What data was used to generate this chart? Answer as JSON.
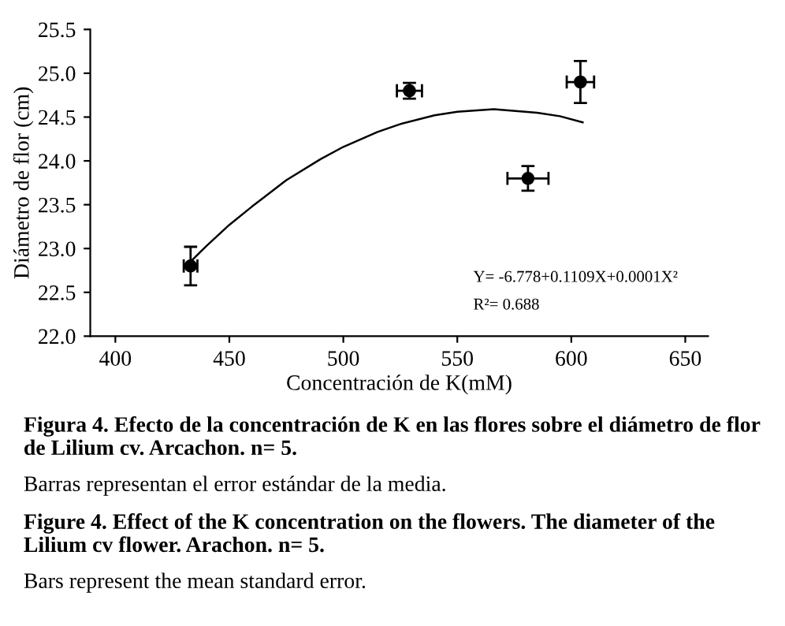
{
  "chart_data": {
    "type": "scatter",
    "xlabel": "Concentración de K(mM)",
    "ylabel": "Diámetro de flor (cm)",
    "xlim": [
      389,
      660
    ],
    "xticks": [
      400,
      450,
      500,
      550,
      600,
      650
    ],
    "ylim": [
      22.0,
      25.5
    ],
    "yticks": [
      {
        "value": 22.0,
        "label": "22.0"
      },
      {
        "value": 22.5,
        "label": "22.5"
      },
      {
        "value": 23.0,
        "label": "23.0"
      },
      {
        "value": 23.5,
        "label": "23.5"
      },
      {
        "value": 24.0,
        "label": "24.0"
      },
      {
        "value": 24.5,
        "label": "24.5"
      },
      {
        "value": 25.0,
        "label": "25.0"
      },
      {
        "value": 25.5,
        "label": "25.5"
      }
    ],
    "grid": false,
    "legend": false,
    "series": [
      {
        "marker": "circle",
        "color": "#000000",
        "x": [
          433,
          529,
          581,
          604
        ],
        "values": [
          22.8,
          24.8,
          23.8,
          24.9
        ],
        "errors": [
          0.22,
          0.09,
          0.14,
          0.24
        ],
        "xerrors": [
          3,
          5.5,
          9,
          6
        ]
      },
      {
        "type": "line",
        "marker": "none",
        "color": "#000000",
        "x": [
          433,
          440,
          450,
          460,
          475,
          490,
          500,
          515,
          525,
          540,
          550,
          566,
          585,
          595,
          605
        ],
        "values": [
          22.85,
          23.03,
          23.27,
          23.48,
          23.78,
          24.02,
          24.16,
          24.33,
          24.42,
          24.52,
          24.56,
          24.59,
          24.55,
          24.51,
          24.44
        ]
      }
    ],
    "annotations": [
      "Y= -6.778+0.1109X+0.0001X²",
      "R²= 0.688",
      "Figura 4. Efecto de la concentración de K en las flores sobre el diámetro de flor de Lilium cv. Arcachon. n= 5.",
      "Barras representan el error estándar de la media.",
      "Figure 4. Effect of the K concentration on the flowers. The diameter of the Lilium cv flower. Arachon. n= 5.",
      "Bars represent the mean standard error."
    ]
  }
}
